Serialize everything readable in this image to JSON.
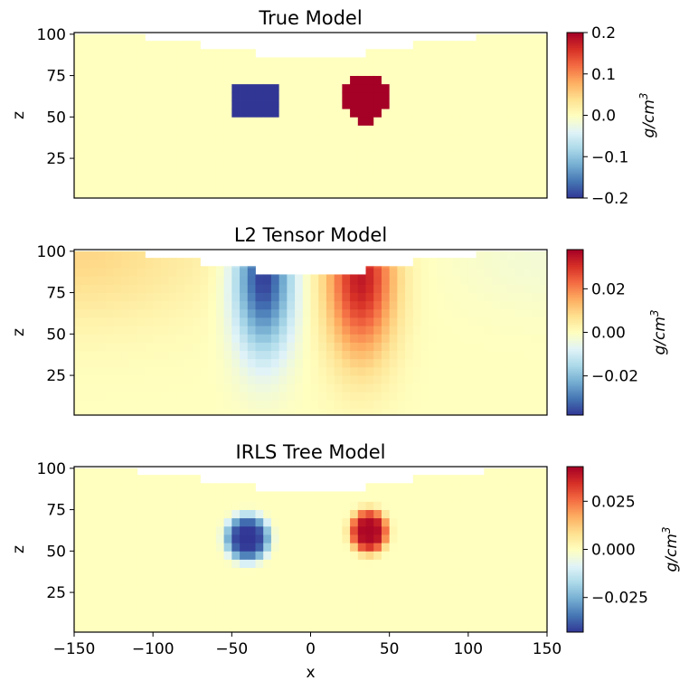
{
  "chart_data": [
    {
      "type": "heatmap",
      "title": "True Model",
      "xlabel": "",
      "ylabel": "z",
      "xlim": [
        -150,
        150
      ],
      "ylim": [
        1,
        101
      ],
      "yticks": [
        "25",
        "50",
        "75",
        "100"
      ],
      "xticks_visible": false,
      "colorbar": {
        "label": "g/cm3",
        "range": [
          -0.2,
          0.2
        ],
        "ticks": [
          "0.2",
          "0.1",
          "0.0",
          "−0.1",
          "−0.2"
        ],
        "tick_values": [
          0.2,
          0.1,
          0,
          -0.1,
          -0.2
        ]
      },
      "colormap": "RdYlBu_r",
      "cell_size": 5,
      "topography": [
        [
          -150,
          -106,
          100
        ],
        [
          -106,
          -70,
          96
        ],
        [
          -70,
          -35,
          91
        ],
        [
          -35,
          35,
          86
        ],
        [
          35,
          65,
          91
        ],
        [
          65,
          106,
          96
        ],
        [
          106,
          150,
          100
        ]
      ],
      "anomalies": [
        {
          "shape": "block",
          "x": [
            -50,
            -20
          ],
          "z": [
            51,
            71
          ],
          "value": -0.2
        },
        {
          "shape": "sphere",
          "center": [
            35,
            61
          ],
          "radius": 15,
          "value": 0.2
        }
      ]
    },
    {
      "type": "heatmap",
      "title": "L2 Tensor Model",
      "xlabel": "",
      "ylabel": "z",
      "xlim": [
        -150,
        150
      ],
      "ylim": [
        1,
        101
      ],
      "yticks": [
        "25",
        "50",
        "75",
        "100"
      ],
      "xticks_visible": false,
      "colorbar": {
        "label": "g/cm3",
        "range": [
          -0.038,
          0.038
        ],
        "ticks": [
          "0.02",
          "0.00",
          "−0.02"
        ],
        "tick_values": [
          0.02,
          0,
          -0.02
        ]
      },
      "colormap": "RdYlBu_r",
      "cell_size": 5,
      "topography": [
        [
          -150,
          -106,
          100
        ],
        [
          -106,
          -70,
          96
        ],
        [
          -70,
          -35,
          91
        ],
        [
          -35,
          35,
          86
        ],
        [
          35,
          65,
          91
        ],
        [
          65,
          106,
          96
        ],
        [
          106,
          150,
          100
        ]
      ],
      "anomalies": [
        {
          "shape": "smooth",
          "center": [
            -30,
            85
          ],
          "spread": [
            13,
            32
          ],
          "value": -0.038
        },
        {
          "shape": "smooth",
          "center": [
            32,
            85
          ],
          "spread": [
            15,
            34
          ],
          "value": 0.034
        },
        {
          "shape": "smooth",
          "center": [
            -150,
            100
          ],
          "spread": [
            60,
            30
          ],
          "value": 0.009
        },
        {
          "shape": "smooth",
          "center": [
            150,
            100
          ],
          "spread": [
            40,
            25
          ],
          "value": -0.003
        }
      ]
    },
    {
      "type": "heatmap",
      "title": "IRLS Tree Model",
      "xlabel": "x",
      "ylabel": "z",
      "xlim": [
        -150,
        150
      ],
      "ylim": [
        1,
        101
      ],
      "xticks": [
        "−150",
        "−100",
        "−50",
        "0",
        "50",
        "100",
        "150"
      ],
      "xtick_values": [
        -150,
        -100,
        -50,
        0,
        50,
        100,
        150
      ],
      "yticks": [
        "25",
        "50",
        "75",
        "100"
      ],
      "colorbar": {
        "label": "g/cm3",
        "range": [
          -0.043,
          0.043
        ],
        "ticks": [
          "0.025",
          "0.000",
          "−0.025"
        ],
        "tick_values": [
          0.025,
          0,
          -0.025
        ]
      },
      "colormap": "RdYlBu_r",
      "cell_size": 5,
      "topography": [
        [
          -150,
          -110,
          100
        ],
        [
          -110,
          -70,
          96
        ],
        [
          -70,
          -35,
          91
        ],
        [
          -35,
          35,
          86
        ],
        [
          35,
          65,
          91
        ],
        [
          65,
          110,
          96
        ],
        [
          110,
          150,
          100
        ]
      ],
      "anomalies": [
        {
          "shape": "compact",
          "center": [
            -40,
            58
          ],
          "spread": [
            14,
            14
          ],
          "value": -0.043
        },
        {
          "shape": "compact",
          "center": [
            37,
            62
          ],
          "spread": [
            12,
            13
          ],
          "value": 0.042
        }
      ]
    }
  ],
  "colors": {
    "cmap": [
      "#313695",
      "#4575b4",
      "#74add1",
      "#abd9e9",
      "#e0f3f8",
      "#ffffbf",
      "#fee090",
      "#fdae61",
      "#f46d43",
      "#d73027",
      "#a50026"
    ]
  }
}
